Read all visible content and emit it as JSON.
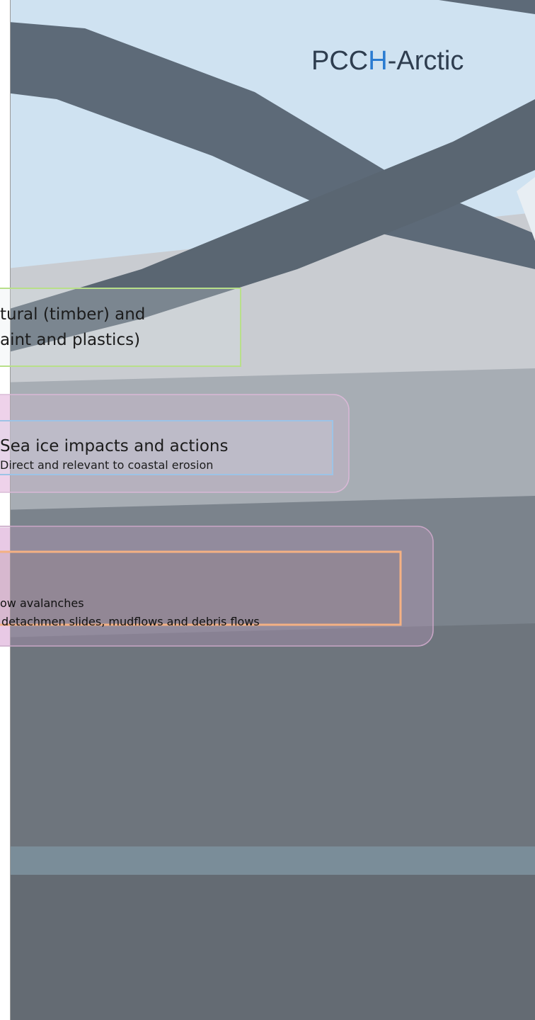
{
  "header": {
    "title_parts": [
      "PCC",
      "H",
      "-Arctic"
    ]
  },
  "boxes": [
    {
      "lines": [
        "tural  (timber) and",
        "aint and plastics)"
      ]
    },
    {
      "lines": [
        "Sea ice impacts and actions",
        "Direct and relevant to coastal erosion"
      ]
    },
    {
      "lines": [
        "ow avalanches",
        "detachmen slides, mudflows and debris flows"
      ]
    }
  ]
}
